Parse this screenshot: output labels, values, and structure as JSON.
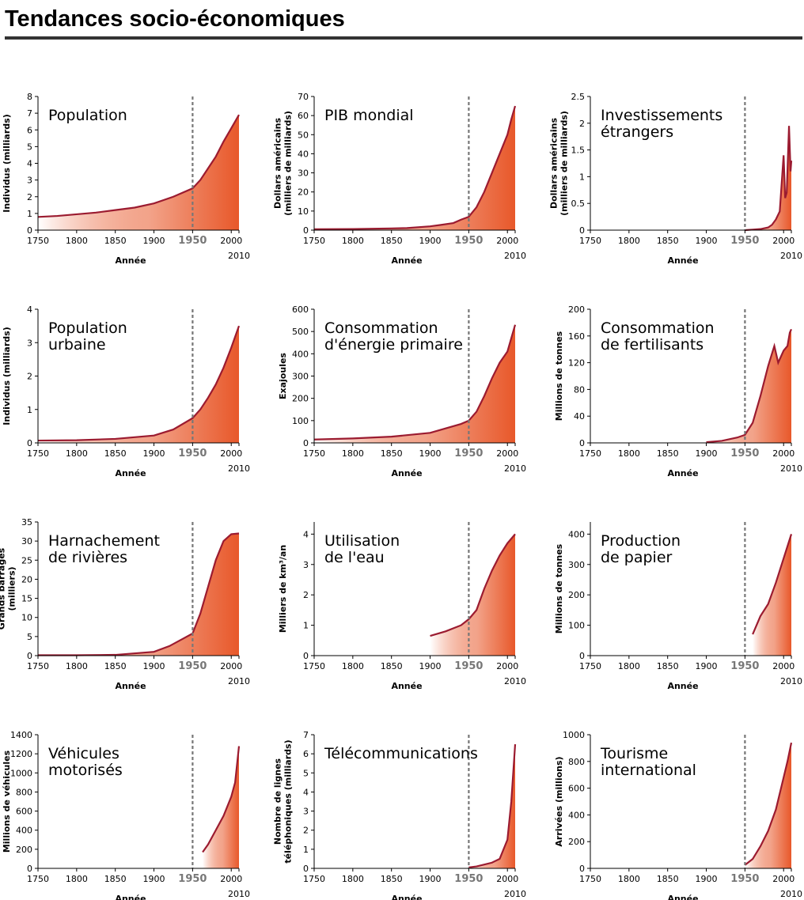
{
  "page_title": "Tendances socio-économiques",
  "chart_data": [
    {
      "type": "line",
      "title": [
        "Population"
      ],
      "ylabel": [
        "Individus (milliards)"
      ],
      "xlabel": "Année",
      "x": [
        1750,
        1775,
        1800,
        1825,
        1850,
        1875,
        1900,
        1925,
        1950,
        1960,
        1970,
        1980,
        1990,
        2000,
        2010
      ],
      "series": [
        {
          "color": "#9b1b30",
          "values": [
            0.79,
            0.85,
            0.95,
            1.05,
            1.2,
            1.35,
            1.6,
            2.0,
            2.5,
            3.0,
            3.7,
            4.4,
            5.3,
            6.1,
            6.9
          ]
        }
      ],
      "fill_color": "#e8582a",
      "marker_x": 1950,
      "xlim": [
        1750,
        2010
      ],
      "xticks": [
        1750,
        1800,
        1850,
        1900,
        1950,
        2000,
        2010
      ],
      "ylim": [
        0,
        8
      ],
      "yticks": [
        0,
        1,
        2,
        3,
        4,
        5,
        6,
        7,
        8
      ]
    },
    {
      "type": "line",
      "title": [
        "PIB mondial"
      ],
      "ylabel": [
        "Dollars américains",
        "(milliers de milliards)"
      ],
      "xlabel": "Année",
      "x": [
        1750,
        1800,
        1850,
        1870,
        1900,
        1913,
        1930,
        1940,
        1950,
        1960,
        1970,
        1980,
        1990,
        2000,
        2005,
        2010
      ],
      "series": [
        {
          "color": "#9b1b30",
          "values": [
            0.5,
            0.6,
            0.9,
            1.1,
            2,
            2.7,
            3.7,
            5.5,
            7,
            12,
            20,
            30,
            40,
            50,
            58,
            65
          ]
        }
      ],
      "fill_color": "#e8582a",
      "marker_x": 1950,
      "xlim": [
        1750,
        2010
      ],
      "xticks": [
        1750,
        1800,
        1850,
        1900,
        1950,
        2000,
        2010
      ],
      "ylim": [
        0,
        70
      ],
      "yticks": [
        0,
        10,
        20,
        30,
        40,
        50,
        60,
        70
      ]
    },
    {
      "type": "line",
      "title": [
        "Investissements",
        "étrangers"
      ],
      "ylabel": [
        "Dollars américains",
        "(milliers de milliards)"
      ],
      "xlabel": "Année",
      "x": [
        1950,
        1960,
        1970,
        1980,
        1985,
        1990,
        1995,
        2000,
        2002,
        2004,
        2007,
        2009,
        2010
      ],
      "series": [
        {
          "color": "#9b1b30",
          "values": [
            0,
            0.01,
            0.02,
            0.05,
            0.1,
            0.2,
            0.35,
            1.4,
            0.6,
            0.7,
            1.95,
            1.1,
            1.3
          ]
        }
      ],
      "fill_color": "#e8582a",
      "marker_x": 1950,
      "xlim": [
        1750,
        2010
      ],
      "xticks": [
        1750,
        1800,
        1850,
        1900,
        1950,
        2000,
        2010
      ],
      "ylim": [
        0,
        2.5
      ],
      "yticks": [
        0,
        0.5,
        1,
        1.5,
        2,
        2.5
      ]
    },
    {
      "type": "line",
      "title": [
        "Population",
        "urbaine"
      ],
      "ylabel": [
        "Individus (milliards)"
      ],
      "xlabel": "Année",
      "x": [
        1750,
        1800,
        1850,
        1900,
        1925,
        1950,
        1960,
        1970,
        1980,
        1990,
        2000,
        2010
      ],
      "series": [
        {
          "color": "#9b1b30",
          "values": [
            0.07,
            0.08,
            0.12,
            0.22,
            0.4,
            0.74,
            1.0,
            1.35,
            1.75,
            2.25,
            2.85,
            3.5
          ]
        }
      ],
      "fill_color": "#e8582a",
      "marker_x": 1950,
      "xlim": [
        1750,
        2010
      ],
      "xticks": [
        1750,
        1800,
        1850,
        1900,
        1950,
        2000,
        2010
      ],
      "ylim": [
        0,
        4
      ],
      "yticks": [
        0,
        1,
        2,
        3,
        4
      ]
    },
    {
      "type": "line",
      "title": [
        "Consommation",
        "d'énergie primaire"
      ],
      "ylabel": [
        "Exajoules"
      ],
      "xlabel": "Année",
      "x": [
        1750,
        1800,
        1850,
        1900,
        1920,
        1940,
        1950,
        1960,
        1970,
        1980,
        1990,
        2000,
        2005,
        2010
      ],
      "series": [
        {
          "color": "#9b1b30",
          "values": [
            15,
            20,
            28,
            45,
            65,
            85,
            100,
            140,
            210,
            290,
            360,
            410,
            470,
            530
          ]
        }
      ],
      "fill_color": "#e8582a",
      "marker_x": 1950,
      "xlim": [
        1750,
        2010
      ],
      "xticks": [
        1750,
        1800,
        1850,
        1900,
        1950,
        2000,
        2010
      ],
      "ylim": [
        0,
        600
      ],
      "yticks": [
        0,
        100,
        200,
        300,
        400,
        500,
        600
      ]
    },
    {
      "type": "line",
      "title": [
        "Consommation",
        "de fertilisants"
      ],
      "ylabel": [
        "Millions de tonnes"
      ],
      "xlabel": "Année",
      "x": [
        1900,
        1920,
        1940,
        1950,
        1960,
        1970,
        1980,
        1988,
        1993,
        2000,
        2005,
        2008,
        2010
      ],
      "series": [
        {
          "color": "#9b1b30",
          "values": [
            1,
            3,
            8,
            12,
            30,
            70,
            115,
            145,
            120,
            138,
            145,
            165,
            170
          ]
        }
      ],
      "fill_color": "#e8582a",
      "marker_x": 1950,
      "xlim": [
        1750,
        2010
      ],
      "xticks": [
        1750,
        1800,
        1850,
        1900,
        1950,
        2000,
        2010
      ],
      "ylim": [
        0,
        200
      ],
      "yticks": [
        0,
        40,
        80,
        120,
        160,
        200
      ]
    },
    {
      "type": "line",
      "title": [
        "Harnachement",
        "de rivières"
      ],
      "ylabel": [
        "Grands barrages",
        "(milliers)"
      ],
      "xlabel": "Année",
      "x": [
        1750,
        1800,
        1850,
        1900,
        1920,
        1940,
        1950,
        1960,
        1970,
        1980,
        1990,
        2000,
        2010
      ],
      "series": [
        {
          "color": "#9b1b30",
          "values": [
            0.1,
            0.1,
            0.2,
            1,
            2.5,
            4.7,
            5.8,
            11,
            18,
            25,
            30,
            31.8,
            32
          ]
        }
      ],
      "fill_color": "#e8582a",
      "marker_x": 1950,
      "xlim": [
        1750,
        2010
      ],
      "xticks": [
        1750,
        1800,
        1850,
        1900,
        1950,
        2000,
        2010
      ],
      "ylim": [
        0,
        35
      ],
      "yticks": [
        0,
        5,
        10,
        15,
        20,
        25,
        30,
        35
      ]
    },
    {
      "type": "line",
      "title": [
        "Utilisation",
        "de l'eau"
      ],
      "ylabel": [
        "Milliers de km³/an"
      ],
      "xlabel": "Année",
      "x": [
        1900,
        1920,
        1940,
        1950,
        1960,
        1970,
        1980,
        1990,
        2000,
        2010
      ],
      "series": [
        {
          "color": "#9b1b30",
          "values": [
            0.65,
            0.8,
            1.0,
            1.2,
            1.5,
            2.2,
            2.8,
            3.3,
            3.7,
            4.0
          ]
        }
      ],
      "fill_color": "#e8582a",
      "marker_x": 1950,
      "xlim": [
        1750,
        2010
      ],
      "xticks": [
        1750,
        1800,
        1850,
        1900,
        1950,
        2000,
        2010
      ],
      "ylim": [
        0,
        4.4
      ],
      "yticks": [
        0,
        1,
        2,
        3,
        4
      ]
    },
    {
      "type": "line",
      "title": [
        "Production",
        "de papier"
      ],
      "ylabel": [
        "Millions de tonnes"
      ],
      "xlabel": "Année",
      "x": [
        1960,
        1970,
        1980,
        1990,
        2000,
        2010
      ],
      "series": [
        {
          "color": "#9b1b30",
          "values": [
            70,
            130,
            170,
            240,
            320,
            400
          ]
        }
      ],
      "fill_color": "#e8582a",
      "marker_x": 1950,
      "xlim": [
        1750,
        2010
      ],
      "xticks": [
        1750,
        1800,
        1850,
        1900,
        1950,
        2000,
        2010
      ],
      "ylim": [
        0,
        440
      ],
      "yticks": [
        0,
        100,
        200,
        300,
        400
      ]
    },
    {
      "type": "line",
      "title": [
        "Véhicules",
        "motorisés"
      ],
      "ylabel": [
        "Millions de véhicules"
      ],
      "xlabel": "Année",
      "x": [
        1963,
        1970,
        1980,
        1990,
        2000,
        2005,
        2010
      ],
      "series": [
        {
          "color": "#9b1b30",
          "values": [
            170,
            250,
            400,
            550,
            750,
            900,
            1280
          ]
        }
      ],
      "fill_color": "#e8582a",
      "marker_x": 1950,
      "xlim": [
        1750,
        2010
      ],
      "xticks": [
        1750,
        1800,
        1850,
        1900,
        1950,
        2000,
        2010
      ],
      "ylim": [
        0,
        1400
      ],
      "yticks": [
        0,
        200,
        400,
        600,
        800,
        1000,
        1200,
        1400
      ]
    },
    {
      "type": "line",
      "title": [
        "Télécommunications"
      ],
      "ylabel": [
        "Nombre de lignes",
        "téléphoniques (milliards)"
      ],
      "xlabel": "Année",
      "x": [
        1950,
        1960,
        1970,
        1980,
        1990,
        2000,
        2005,
        2010
      ],
      "series": [
        {
          "color": "#9b1b30",
          "values": [
            0.05,
            0.1,
            0.2,
            0.3,
            0.5,
            1.5,
            3.5,
            6.5
          ]
        }
      ],
      "fill_color": "#e8582a",
      "marker_x": 1950,
      "xlim": [
        1750,
        2010
      ],
      "xticks": [
        1750,
        1800,
        1850,
        1900,
        1950,
        2000,
        2010
      ],
      "ylim": [
        0,
        7
      ],
      "yticks": [
        0,
        1,
        2,
        3,
        4,
        5,
        6,
        7
      ]
    },
    {
      "type": "line",
      "title": [
        "Tourisme",
        "international"
      ],
      "ylabel": [
        "Arrivées (millions)"
      ],
      "xlabel": "Année",
      "x": [
        1950,
        1960,
        1970,
        1980,
        1990,
        2000,
        2005,
        2010
      ],
      "series": [
        {
          "color": "#9b1b30",
          "values": [
            25,
            70,
            165,
            280,
            440,
            680,
            800,
            940
          ]
        }
      ],
      "fill_color": "#e8582a",
      "marker_x": 1950,
      "xlim": [
        1750,
        2010
      ],
      "xticks": [
        1750,
        1800,
        1850,
        1900,
        1950,
        2000,
        2010
      ],
      "ylim": [
        0,
        1000
      ],
      "yticks": [
        0,
        200,
        400,
        600,
        800,
        1000
      ]
    }
  ]
}
